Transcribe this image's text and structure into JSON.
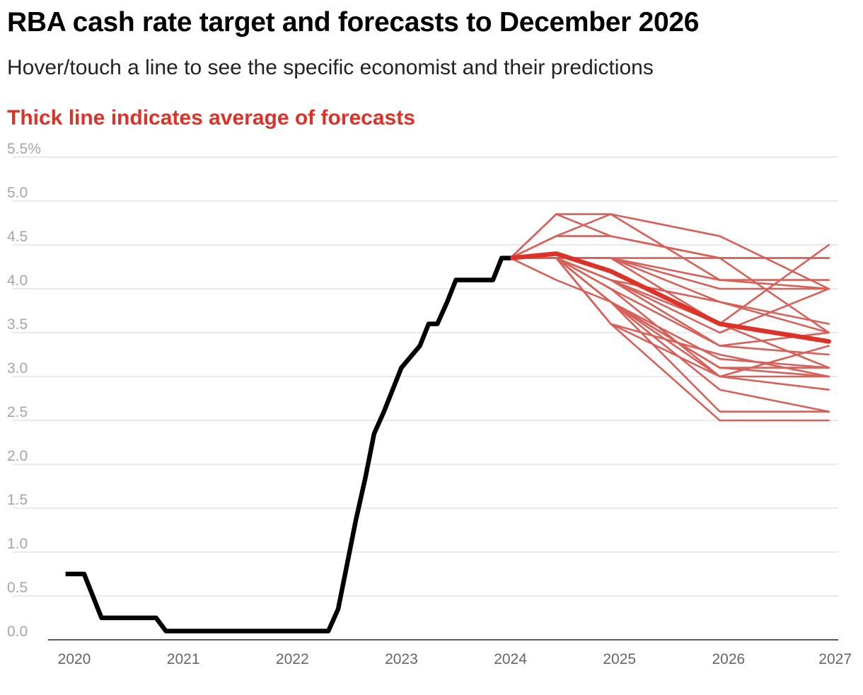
{
  "title": "RBA cash rate target and forecasts to December 2026",
  "subtitle": "Hover/touch a line to see the specific economist and their predictions",
  "note": "Thick line indicates average of forecasts",
  "colors": {
    "actual": "#000000",
    "forecast": "#d6605a",
    "average": "#dc3228",
    "note": "#dc3228",
    "grid": "#e4e4e4",
    "y_tick_text": "#a6a6a6",
    "x_tick_text": "#666666"
  },
  "chart_data": {
    "type": "line",
    "title": "RBA cash rate target and forecasts to December 2026",
    "subtitle": "Hover/touch a line to see the specific economist and their predictions",
    "xlabel": "",
    "ylabel": "",
    "xlim": [
      2020,
      2027
    ],
    "ylim": [
      0,
      5.5
    ],
    "grid": true,
    "y_ticks": [
      {
        "value": 5.5,
        "label": "5.5%"
      },
      {
        "value": 5.0,
        "label": "5.0"
      },
      {
        "value": 4.5,
        "label": "4.5"
      },
      {
        "value": 4.0,
        "label": "4.0"
      },
      {
        "value": 3.5,
        "label": "3.5"
      },
      {
        "value": 3.0,
        "label": "3.0"
      },
      {
        "value": 2.5,
        "label": "2.5"
      },
      {
        "value": 2.0,
        "label": "2.0"
      },
      {
        "value": 1.5,
        "label": "1.5"
      },
      {
        "value": 1.0,
        "label": "1.0"
      },
      {
        "value": 0.5,
        "label": "0.5"
      },
      {
        "value": 0.0,
        "label": "0.0"
      }
    ],
    "x_ticks": [
      {
        "value": 2020,
        "label": "2020"
      },
      {
        "value": 2021,
        "label": "2021"
      },
      {
        "value": 2022,
        "label": "2022"
      },
      {
        "value": 2023,
        "label": "2023"
      },
      {
        "value": 2024,
        "label": "2024"
      },
      {
        "value": 2025,
        "label": "2025"
      },
      {
        "value": 2026,
        "label": "2026"
      },
      {
        "value": 2027,
        "label": "2027"
      }
    ],
    "actual": [
      [
        2019.92,
        0.75
      ],
      [
        2020.09,
        0.75
      ],
      [
        2020.25,
        0.25
      ],
      [
        2020.75,
        0.25
      ],
      [
        2020.84,
        0.1
      ],
      [
        2022.33,
        0.1
      ],
      [
        2022.42,
        0.35
      ],
      [
        2022.5,
        0.85
      ],
      [
        2022.58,
        1.35
      ],
      [
        2022.67,
        1.85
      ],
      [
        2022.75,
        2.35
      ],
      [
        2022.84,
        2.6
      ],
      [
        2022.92,
        2.85
      ],
      [
        2023.0,
        3.1
      ],
      [
        2023.17,
        3.35
      ],
      [
        2023.25,
        3.6
      ],
      [
        2023.33,
        3.6
      ],
      [
        2023.42,
        3.85
      ],
      [
        2023.5,
        4.1
      ],
      [
        2023.84,
        4.1
      ],
      [
        2023.92,
        4.35
      ],
      [
        2024.0,
        4.35
      ]
    ],
    "forecast_x": [
      2024.0,
      2024.42,
      2024.92,
      2025.92,
      2026.92
    ],
    "forecasts": [
      [
        4.35,
        4.85,
        4.85,
        4.6,
        4.0
      ],
      [
        4.35,
        4.85,
        4.6,
        4.35,
        4.35
      ],
      [
        4.35,
        4.6,
        4.85,
        4.1,
        4.1
      ],
      [
        4.35,
        4.6,
        4.6,
        4.35,
        3.5
      ],
      [
        4.35,
        4.35,
        4.35,
        4.35,
        4.35
      ],
      [
        4.35,
        4.35,
        4.35,
        4.1,
        4.0
      ],
      [
        4.35,
        4.35,
        4.35,
        4.0,
        4.0
      ],
      [
        4.35,
        4.35,
        4.35,
        3.85,
        3.6
      ],
      [
        4.35,
        4.35,
        4.1,
        3.85,
        3.5
      ],
      [
        4.35,
        4.35,
        4.1,
        3.6,
        4.5
      ],
      [
        4.35,
        4.35,
        4.1,
        3.5,
        4.0
      ],
      [
        4.35,
        4.35,
        4.35,
        3.6,
        3.1
      ],
      [
        4.35,
        4.35,
        4.1,
        3.35,
        3.5
      ],
      [
        4.35,
        4.35,
        4.0,
        3.35,
        3.25
      ],
      [
        4.35,
        4.1,
        3.85,
        3.2,
        3.1
      ],
      [
        4.35,
        4.35,
        3.85,
        3.1,
        3.1
      ],
      [
        4.35,
        4.35,
        3.85,
        3.1,
        3.0
      ],
      [
        4.35,
        4.35,
        3.6,
        3.0,
        3.0
      ],
      [
        4.35,
        4.35,
        3.85,
        2.85,
        2.6
      ],
      [
        4.35,
        4.35,
        3.85,
        3.0,
        2.85
      ],
      [
        4.35,
        4.35,
        3.6,
        2.5,
        2.5
      ],
      [
        4.35,
        4.35,
        3.85,
        2.6,
        2.6
      ],
      [
        4.35,
        4.35,
        4.0,
        3.0,
        3.35
      ],
      [
        4.35,
        4.35,
        3.6,
        3.25,
        3.0
      ]
    ],
    "average": {
      "x": [
        2024.0,
        2024.42,
        2024.92,
        2025.92,
        2026.92
      ],
      "values": [
        4.35,
        4.4,
        4.2,
        3.6,
        3.4
      ]
    }
  }
}
